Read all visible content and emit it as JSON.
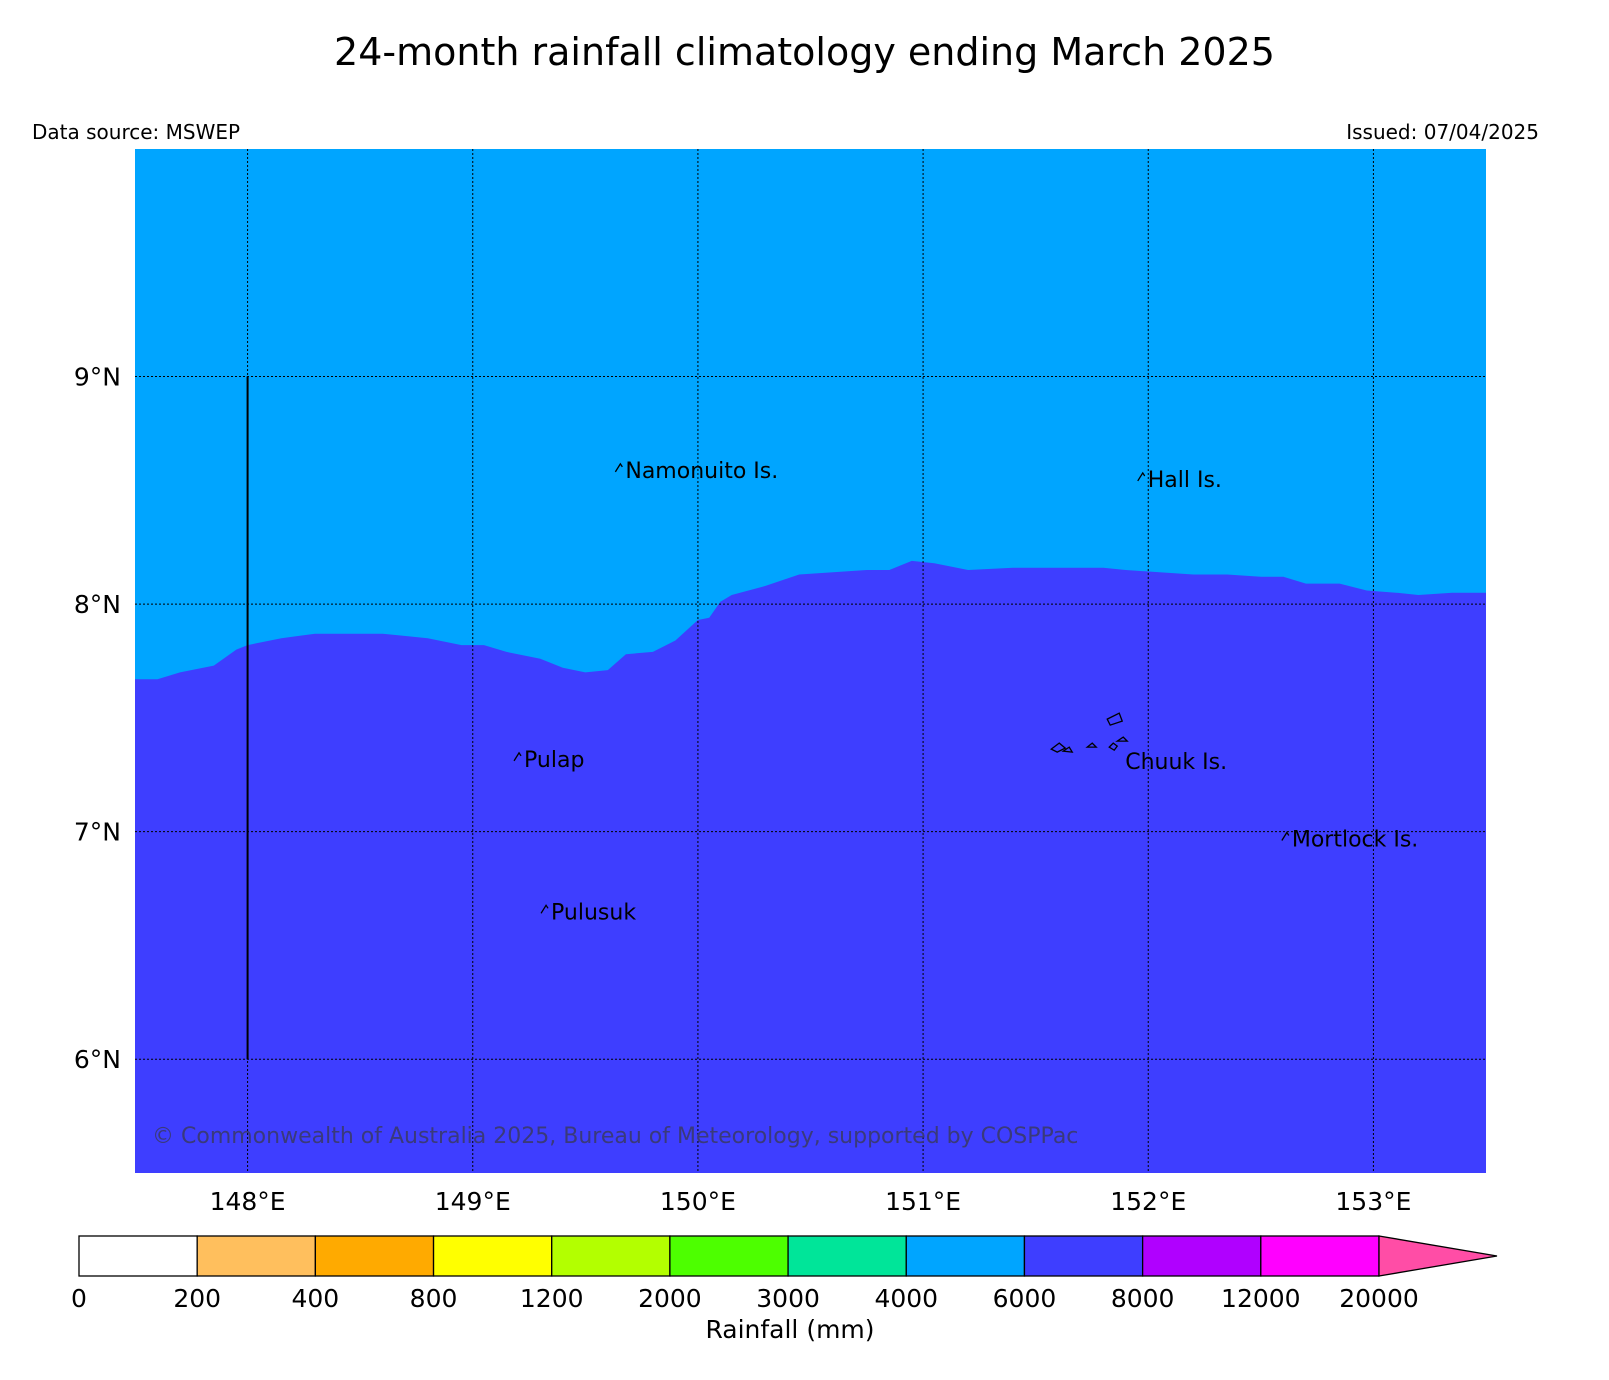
{
  "title": "24-month rainfall climatology ending March 2025",
  "source": "Data source: MSWEP",
  "issued": "Issued: 07/04/2025",
  "copyright": "© Commonwealth of Australia 2025, Bureau of Meteorology, supported by COSPPac",
  "colors": {
    "band_4000_6000": "#00a5ff",
    "band_6000_8000": "#3e3eff"
  },
  "map": {
    "lon_range": [
      147.5,
      153.5
    ],
    "lat_range": [
      5.5,
      10.0
    ],
    "lon_ticks": [
      {
        "value": 148,
        "label": "148°E"
      },
      {
        "value": 149,
        "label": "149°E"
      },
      {
        "value": 150,
        "label": "150°E"
      },
      {
        "value": 151,
        "label": "151°E"
      },
      {
        "value": 152,
        "label": "152°E"
      },
      {
        "value": 153,
        "label": "153°E"
      }
    ],
    "lat_ticks": [
      {
        "value": 6,
        "label": "6°N"
      },
      {
        "value": 7,
        "label": "7°N"
      },
      {
        "value": 8,
        "label": "8°N"
      },
      {
        "value": 9,
        "label": "9°N"
      }
    ],
    "boundary_6000mm": [
      [
        147.5,
        7.67
      ],
      [
        147.6,
        7.67
      ],
      [
        147.7,
        7.7
      ],
      [
        147.85,
        7.73
      ],
      [
        147.95,
        7.8
      ],
      [
        148.0,
        7.82
      ],
      [
        148.15,
        7.85
      ],
      [
        148.3,
        7.87
      ],
      [
        148.6,
        7.87
      ],
      [
        148.8,
        7.85
      ],
      [
        148.95,
        7.82
      ],
      [
        149.05,
        7.82
      ],
      [
        149.15,
        7.79
      ],
      [
        149.3,
        7.76
      ],
      [
        149.4,
        7.72
      ],
      [
        149.5,
        7.7
      ],
      [
        149.6,
        7.71
      ],
      [
        149.68,
        7.78
      ],
      [
        149.8,
        7.79
      ],
      [
        149.9,
        7.84
      ],
      [
        150.0,
        7.93
      ],
      [
        150.05,
        7.94
      ],
      [
        150.1,
        8.01
      ],
      [
        150.15,
        8.04
      ],
      [
        150.3,
        8.08
      ],
      [
        150.45,
        8.13
      ],
      [
        150.6,
        8.14
      ],
      [
        150.75,
        8.15
      ],
      [
        150.85,
        8.15
      ],
      [
        150.95,
        8.19
      ],
      [
        151.05,
        8.18
      ],
      [
        151.2,
        8.15
      ],
      [
        151.4,
        8.16
      ],
      [
        151.6,
        8.16
      ],
      [
        151.8,
        8.16
      ],
      [
        151.9,
        8.15
      ],
      [
        152.05,
        8.14
      ],
      [
        152.2,
        8.13
      ],
      [
        152.35,
        8.13
      ],
      [
        152.5,
        8.12
      ],
      [
        152.6,
        8.12
      ],
      [
        152.7,
        8.09
      ],
      [
        152.85,
        8.09
      ],
      [
        152.97,
        8.06
      ],
      [
        153.1,
        8.05
      ],
      [
        153.2,
        8.04
      ],
      [
        153.35,
        8.05
      ],
      [
        153.5,
        8.05
      ]
    ],
    "meridian_line": {
      "lon": 148,
      "lat_from": 6,
      "lat_to": 9
    },
    "places": [
      {
        "name": "Namonuito Is.",
        "lon": 149.66,
        "lat": 8.59
      },
      {
        "name": "Hall Is.",
        "lon": 151.98,
        "lat": 8.55
      },
      {
        "name": "Pulap",
        "lon": 149.21,
        "lat": 7.32
      },
      {
        "name": "Chuuk Is.",
        "lon": 151.88,
        "lat": 7.31
      },
      {
        "name": "Mortlock Is.",
        "lon": 152.62,
        "lat": 6.97
      },
      {
        "name": "Pulusuk",
        "lon": 149.33,
        "lat": 6.65
      }
    ]
  },
  "legend": {
    "title": "Rainfall (mm)",
    "labels": [
      "0",
      "200",
      "400",
      "800",
      "1200",
      "2000",
      "3000",
      "4000",
      "6000",
      "8000",
      "12000",
      "20000"
    ],
    "colors": [
      "#ffffff",
      "#ffbf5d",
      "#ffaa00",
      "#ffff00",
      "#b3ff00",
      "#4dff00",
      "#00e599",
      "#00a5ff",
      "#3e3eff",
      "#b000ff",
      "#ff00ff"
    ],
    "extend_color": "#ff4da6"
  }
}
